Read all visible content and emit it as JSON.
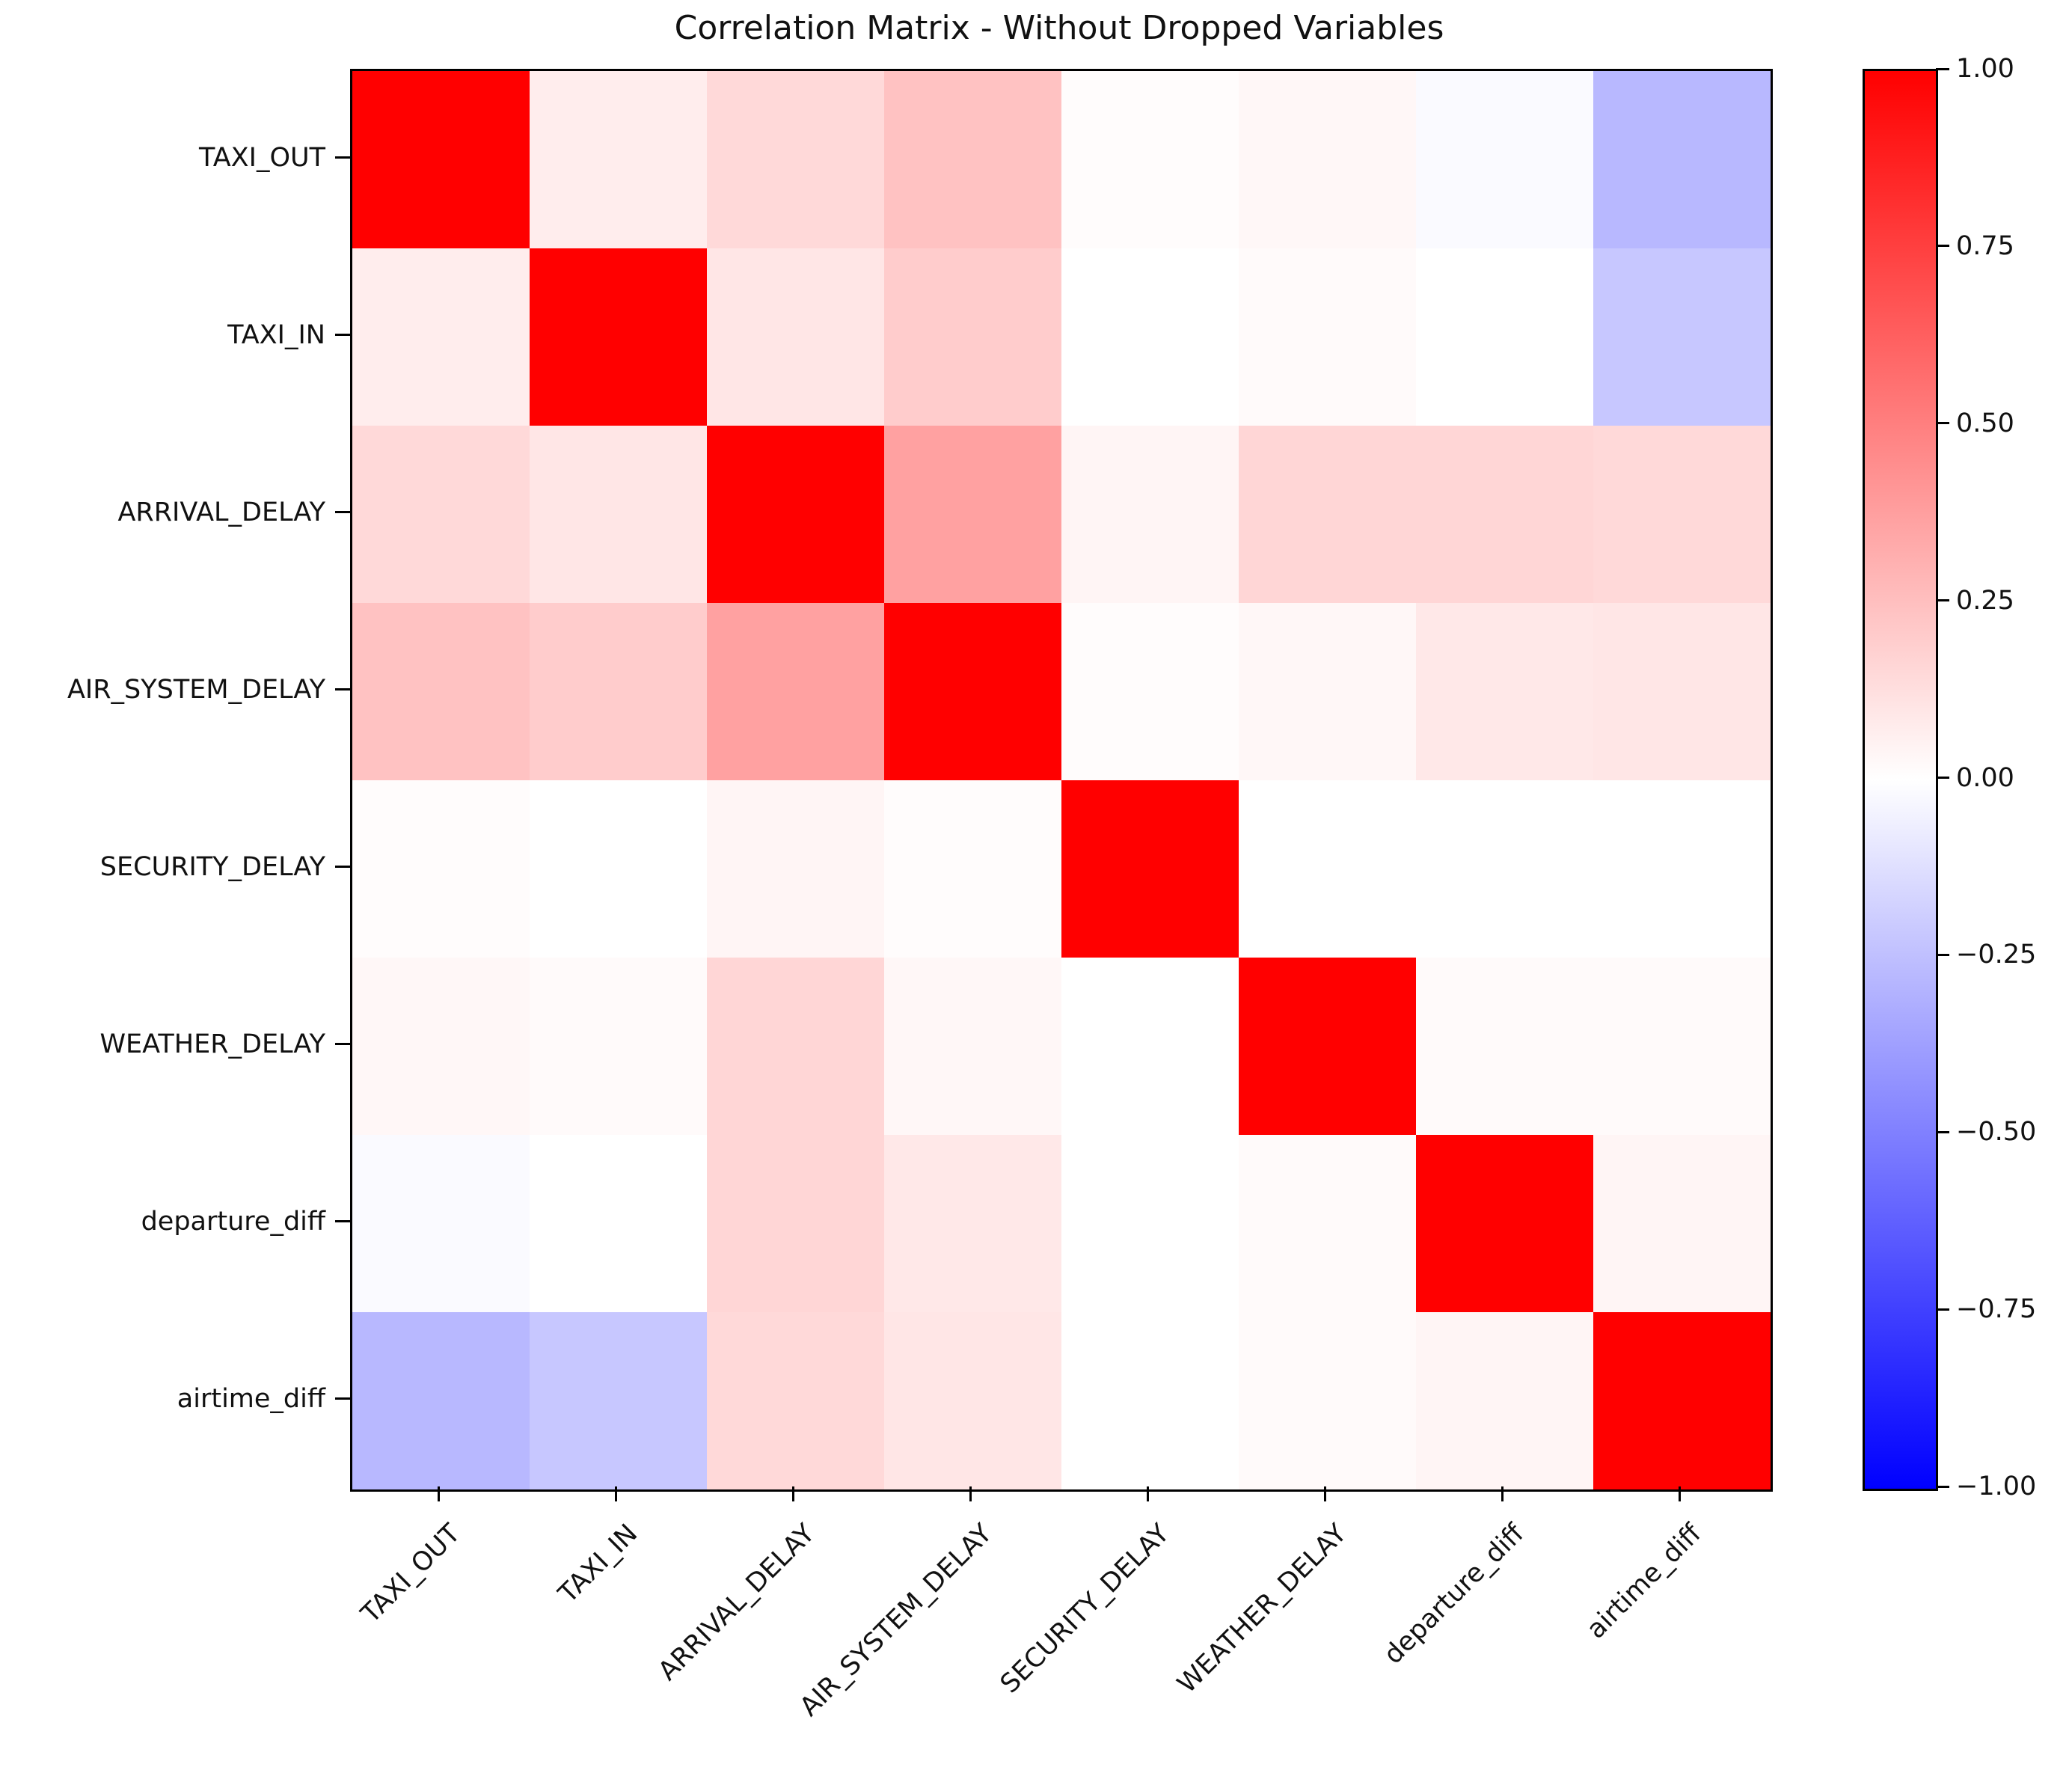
{
  "figure": {
    "title": "Correlation Matrix - Without Dropped Variables"
  },
  "chart_data": {
    "type": "heatmap",
    "title": "Correlation Matrix - Without Dropped Variables",
    "variables": [
      "TAXI_OUT",
      "TAXI_IN",
      "ARRIVAL_DELAY",
      "AIR_SYSTEM_DELAY",
      "SECURITY_DELAY",
      "WEATHER_DELAY",
      "departure_diff",
      "airtime_diff"
    ],
    "matrix": [
      [
        1.0,
        0.07,
        0.15,
        0.24,
        0.01,
        0.03,
        -0.02,
        -0.28
      ],
      [
        0.07,
        1.0,
        0.1,
        0.2,
        0.0,
        0.02,
        0.0,
        -0.22
      ],
      [
        0.15,
        0.1,
        1.0,
        0.37,
        0.04,
        0.16,
        0.16,
        0.15
      ],
      [
        0.24,
        0.2,
        0.37,
        1.0,
        0.01,
        0.03,
        0.09,
        0.1
      ],
      [
        0.01,
        0.0,
        0.04,
        0.01,
        1.0,
        0.0,
        0.0,
        0.0
      ],
      [
        0.03,
        0.02,
        0.16,
        0.03,
        0.0,
        1.0,
        0.02,
        0.02
      ],
      [
        -0.02,
        0.0,
        0.16,
        0.09,
        0.0,
        0.02,
        1.0,
        0.04
      ],
      [
        -0.28,
        -0.22,
        0.15,
        0.1,
        0.0,
        0.02,
        0.04,
        1.0
      ]
    ],
    "vmin": -1.0,
    "vmax": 1.0,
    "colormap": {
      "name": "bwr",
      "negative_color": "#0000ff",
      "zero_color": "#ffffff",
      "positive_color": "#ff0000"
    },
    "colorbar": {
      "position": "right",
      "tick_labels": [
        "1.00",
        "0.75",
        "0.50",
        "0.25",
        "0.00",
        "−0.25",
        "−0.50",
        "−0.75",
        "−1.00"
      ]
    },
    "grid": false,
    "x_tick_rotation_deg": 45
  }
}
